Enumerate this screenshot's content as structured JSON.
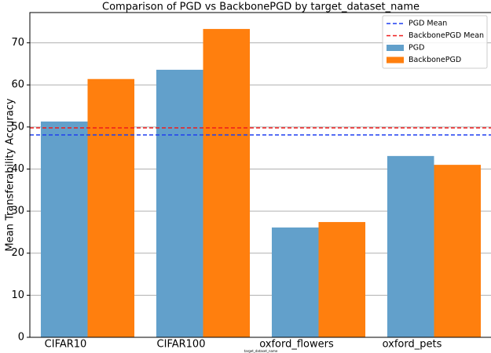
{
  "chart_data": {
    "type": "bar",
    "title": "Comparison of PGD vs BackbonePGD by target_dataset_name",
    "x_label": "target_dataset_name",
    "y_label": "Mean Transferability Accuracy",
    "categories": [
      "CIFAR10",
      "CIFAR100",
      "oxford_flowers",
      "oxford_pets"
    ],
    "series": [
      {
        "name": "PGD",
        "color": "#62a0cb",
        "values": [
          51.3,
          63.6,
          26.1,
          43.1
        ],
        "mean": 48.1,
        "mean_label": "PGD Mean",
        "mean_color": "#1f3ff0"
      },
      {
        "name": "BackbonePGD",
        "color": "#ff7f0e",
        "values": [
          61.4,
          73.3,
          27.4,
          41.0
        ],
        "mean": 49.8,
        "mean_label": "BackbonePGD Mean",
        "mean_color": "#ee1c1c"
      }
    ],
    "ylim": [
      0,
      77.2
    ],
    "yticks": [
      0,
      10,
      20,
      30,
      40,
      50,
      60,
      70
    ],
    "grid": true,
    "legend": "upper right"
  }
}
